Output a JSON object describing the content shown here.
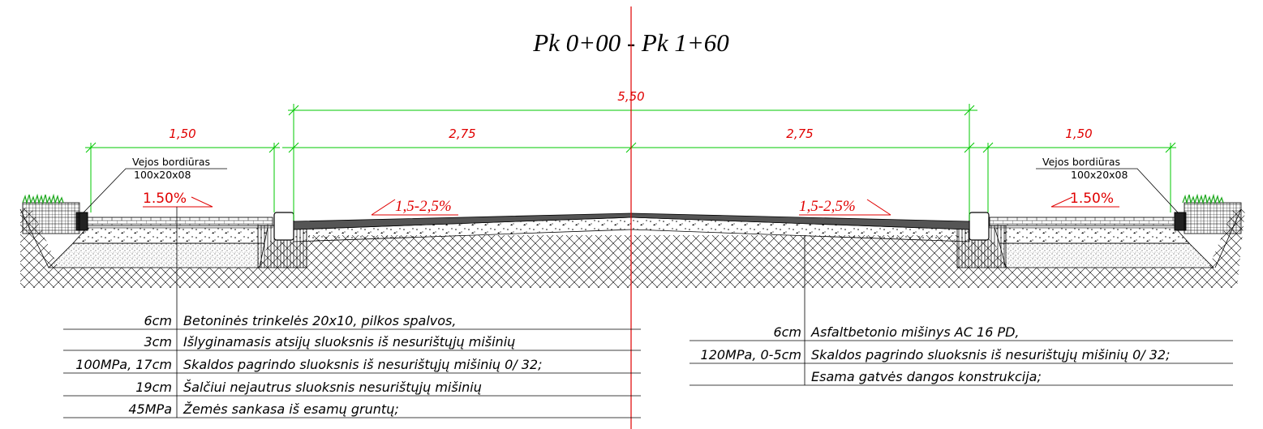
{
  "title": "Pk 0+00 - Pk 1+60",
  "dimensions": {
    "total": "5,50",
    "lane_left": "2,75",
    "lane_right": "2,75",
    "side_left": "1,50",
    "side_right": "1,50"
  },
  "slopes": {
    "road_left": "1,5-2,5%",
    "road_right": "1,5-2,5%",
    "side_left": "1.50%",
    "side_right": "1.50%"
  },
  "curb_notes": {
    "left": {
      "name": "Vejos bordiūras",
      "size": "100x20x08"
    },
    "right": {
      "name": "Vejos bordiūras",
      "size": "100x20x08"
    }
  },
  "layers_left": [
    {
      "spec": "6cm",
      "desc": "Betoninės trinkelės 20x10, pilkos spalvos,"
    },
    {
      "spec": "3cm",
      "desc": "Išlyginamasis atsijų sluoksnis iš nesurištųjų mišinių"
    },
    {
      "spec": "100MPa, 17cm",
      "desc": "Skaldos pagrindo sluoksnis iš nesurištųjų mišinių 0/ 32;"
    },
    {
      "spec": "19cm",
      "desc": "Šalčiui nejautrus sluoksnis nesurištųjų mišinių"
    },
    {
      "spec": "45MPa",
      "desc": "Žemės sankasa iš esamų gruntų;"
    }
  ],
  "layers_right": [
    {
      "spec": "6cm",
      "desc": "Asfaltbetonio mišinys AC 16 PD,"
    },
    {
      "spec": "120MPa, 0-5cm",
      "desc": "Skaldos pagrindo sluoksnis iš nesurištųjų mišinių 0/ 32;"
    },
    {
      "spec": "",
      "desc": "Esama gatvės dangos konstrukcija;"
    }
  ],
  "colors": {
    "dimension": "#00c800",
    "label": "#e00000",
    "axis": "#e00000",
    "grass": "#22aa22",
    "asphalt": "#555555"
  }
}
